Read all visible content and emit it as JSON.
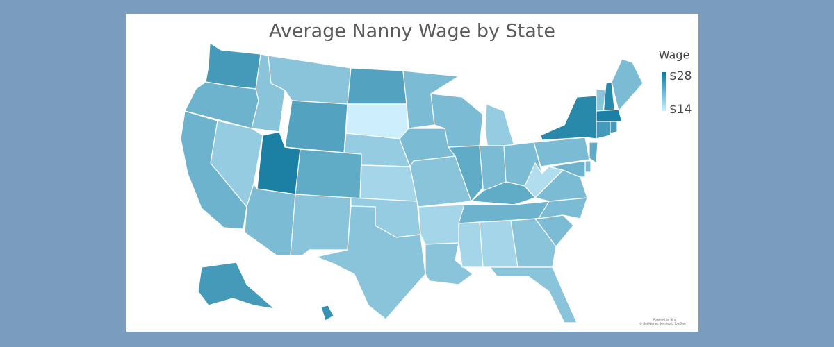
{
  "chart_data": {
    "type": "choropleth",
    "title": "Average Nanny Wage by State",
    "legend_title": "Wage",
    "values": [
      24,
      21,
      21,
      18,
      19,
      19,
      23,
      27,
      22,
      20,
      19,
      23,
      14,
      18,
      17,
      18,
      19,
      20,
      20,
      19,
      17,
      19,
      20,
      22,
      18,
      20,
      20,
      22,
      21,
      17,
      17,
      19,
      19,
      20,
      20,
      20,
      16,
      20,
      26,
      19,
      26,
      20,
      27,
      24,
      24,
      22,
      20,
      21,
      24,
      25
    ],
    "colors": [
      "#cdeefc",
      "#0e789e"
    ],
    "clim": [
      14,
      28
    ],
    "legend_ticks": [
      {
        "value": 28,
        "label": "$28"
      },
      {
        "value": 14,
        "label": "$14"
      }
    ],
    "attribution": [
      "Powered by Bing",
      "© GeoNames, Microsoft, TomTom"
    ]
  }
}
